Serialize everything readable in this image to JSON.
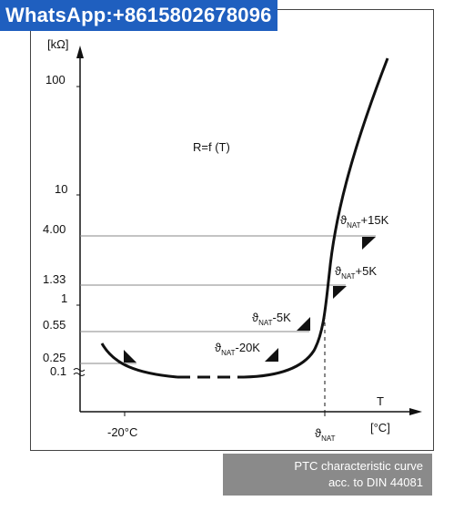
{
  "banner": {
    "text": "WhatsApp:+8615802678096"
  },
  "caption": {
    "line1": "PTC characteristic curve",
    "line2": "acc. to DIN 44081"
  },
  "chart_data": {
    "type": "line",
    "title": "",
    "formula": "R=f (T)",
    "ylabel_unit": "[kΩ]",
    "xlabel": "T",
    "xlabel_unit": "[°C]",
    "y_ticks": [
      "100",
      "10",
      "4.00",
      "1.33",
      "1",
      "0.55",
      "0.25",
      "0.1"
    ],
    "x_ticks": [
      "-20°C",
      "ϑNAT"
    ],
    "reference_levels": [
      {
        "label": "4.00",
        "annotation_base": "ϑ",
        "annotation_sub": "NAT",
        "annotation_rest": "+15K"
      },
      {
        "label": "1.33",
        "annotation_base": "ϑ",
        "annotation_sub": "NAT",
        "annotation_rest": "+5K"
      },
      {
        "label": "0.55",
        "annotation_base": "ϑ",
        "annotation_sub": "NAT",
        "annotation_rest": "-5K"
      },
      {
        "label": "0.25",
        "annotation_base": "ϑ",
        "annotation_sub": "NAT",
        "annotation_rest": "-20K"
      }
    ],
    "grid": false,
    "y_scale": "log"
  },
  "colors": {
    "banner_bg": "#1f5fbf",
    "caption_bg": "#8a8a8a",
    "curve": "#111111",
    "level_line": "#888888"
  }
}
